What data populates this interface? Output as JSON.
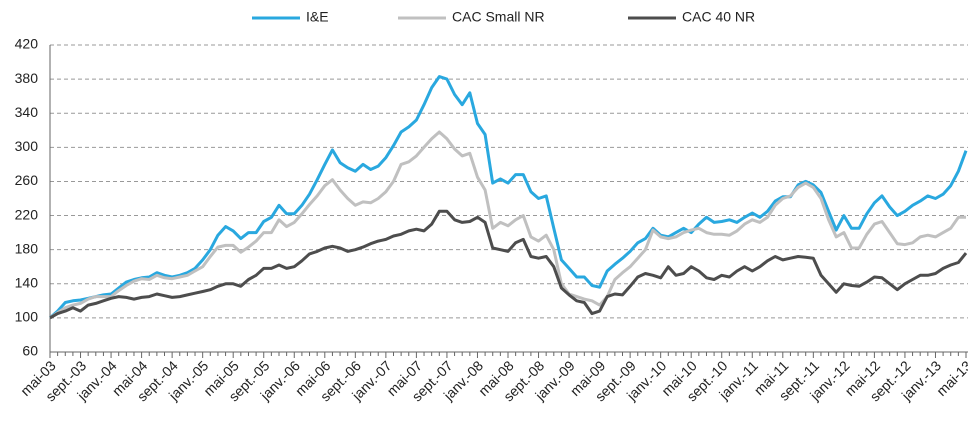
{
  "chart_data": {
    "type": "line",
    "categories": [
      "mai-03",
      null,
      null,
      null,
      "sept.-03",
      null,
      null,
      null,
      "janv.-04",
      null,
      null,
      null,
      "mai-04",
      null,
      null,
      null,
      "sept.-04",
      null,
      null,
      null,
      "janv.-05",
      null,
      null,
      null,
      "mai-05",
      null,
      null,
      null,
      "sept.-05",
      null,
      null,
      null,
      "janv.-06",
      null,
      null,
      null,
      "mai-06",
      null,
      null,
      null,
      "sept.-06",
      null,
      null,
      null,
      "janv.-07",
      null,
      null,
      null,
      "mai-07",
      null,
      null,
      null,
      "sept.-07",
      null,
      null,
      null,
      "janv.-08",
      null,
      null,
      null,
      "mai-08",
      null,
      null,
      null,
      "sept.-08",
      null,
      null,
      null,
      "janv.-09",
      null,
      null,
      null,
      "mai-09",
      null,
      null,
      null,
      "sept.-09",
      null,
      null,
      null,
      "janv.-10",
      null,
      null,
      null,
      "mai-10",
      null,
      null,
      null,
      "sept.-10",
      null,
      null,
      null,
      "janv.-11",
      null,
      null,
      null,
      "mai-11",
      null,
      null,
      null,
      "sept.-11",
      null,
      null,
      null,
      "janv.-12",
      null,
      null,
      null,
      "mai-12",
      null,
      null,
      null,
      "sept.-12",
      null,
      null,
      null,
      "janv.-13",
      null,
      null,
      null,
      "mai-13"
    ],
    "series": [
      {
        "name": "I&E",
        "color": "#29a8df",
        "values": [
          100,
          108,
          118,
          120,
          121,
          123,
          125,
          127,
          128,
          135,
          142,
          145,
          147,
          148,
          153,
          150,
          148,
          150,
          153,
          158,
          168,
          180,
          197,
          207,
          202,
          193,
          200,
          200,
          213,
          218,
          232,
          222,
          222,
          232,
          245,
          262,
          280,
          297,
          282,
          276,
          272,
          280,
          274,
          278,
          288,
          302,
          318,
          324,
          332,
          350,
          370,
          383,
          380,
          362,
          350,
          364,
          328,
          315,
          258,
          263,
          258,
          268,
          268,
          248,
          240,
          243,
          205,
          168,
          158,
          148,
          148,
          138,
          136,
          155,
          163,
          170,
          178,
          188,
          193,
          205,
          197,
          195,
          200,
          205,
          200,
          210,
          218,
          212,
          213,
          215,
          212,
          218,
          223,
          218,
          225,
          237,
          242,
          242,
          256,
          260,
          256,
          247,
          225,
          203,
          220,
          205,
          205,
          222,
          235,
          243,
          230,
          220,
          225,
          232,
          237,
          243,
          240,
          245,
          255,
          272,
          296
        ]
      },
      {
        "name": "CAC Small NR",
        "color": "#c0c0c0",
        "values": [
          100,
          106,
          112,
          115,
          117,
          122,
          125,
          125,
          125,
          132,
          138,
          143,
          146,
          145,
          150,
          147,
          146,
          148,
          150,
          155,
          160,
          172,
          183,
          185,
          185,
          177,
          183,
          190,
          200,
          200,
          215,
          207,
          212,
          222,
          233,
          243,
          255,
          262,
          250,
          240,
          232,
          236,
          235,
          240,
          248,
          260,
          280,
          283,
          290,
          300,
          310,
          318,
          310,
          298,
          290,
          293,
          265,
          250,
          205,
          212,
          208,
          215,
          220,
          195,
          190,
          197,
          180,
          140,
          128,
          125,
          122,
          120,
          115,
          125,
          145,
          153,
          160,
          170,
          180,
          203,
          195,
          193,
          195,
          200,
          203,
          205,
          200,
          198,
          198,
          197,
          202,
          210,
          215,
          212,
          218,
          232,
          240,
          243,
          253,
          258,
          253,
          240,
          215,
          195,
          200,
          182,
          182,
          198,
          210,
          213,
          200,
          187,
          186,
          188,
          195,
          197,
          195,
          200,
          205,
          218,
          218
        ]
      },
      {
        "name": "CAC 40 NR",
        "color": "#4d4d4d",
        "values": [
          100,
          105,
          108,
          112,
          108,
          115,
          117,
          120,
          123,
          125,
          124,
          122,
          124,
          125,
          128,
          126,
          124,
          125,
          127,
          129,
          131,
          133,
          137,
          140,
          140,
          137,
          145,
          150,
          158,
          158,
          162,
          158,
          160,
          167,
          175,
          178,
          182,
          184,
          182,
          178,
          180,
          183,
          187,
          190,
          192,
          196,
          198,
          202,
          204,
          202,
          210,
          225,
          225,
          215,
          212,
          213,
          218,
          212,
          182,
          180,
          178,
          188,
          192,
          172,
          170,
          172,
          160,
          135,
          127,
          120,
          118,
          105,
          108,
          125,
          128,
          127,
          137,
          148,
          152,
          150,
          147,
          160,
          150,
          152,
          160,
          155,
          147,
          145,
          150,
          148,
          155,
          160,
          155,
          160,
          167,
          172,
          168,
          170,
          172,
          171,
          170,
          150,
          140,
          130,
          140,
          138,
          137,
          142,
          148,
          147,
          140,
          133,
          140,
          145,
          150,
          150,
          152,
          158,
          162,
          165,
          176
        ]
      }
    ],
    "ylim": [
      60,
      420
    ],
    "yticks": [
      60,
      100,
      140,
      180,
      220,
      260,
      300,
      340,
      380,
      420
    ],
    "grid": true,
    "legend": "top"
  }
}
